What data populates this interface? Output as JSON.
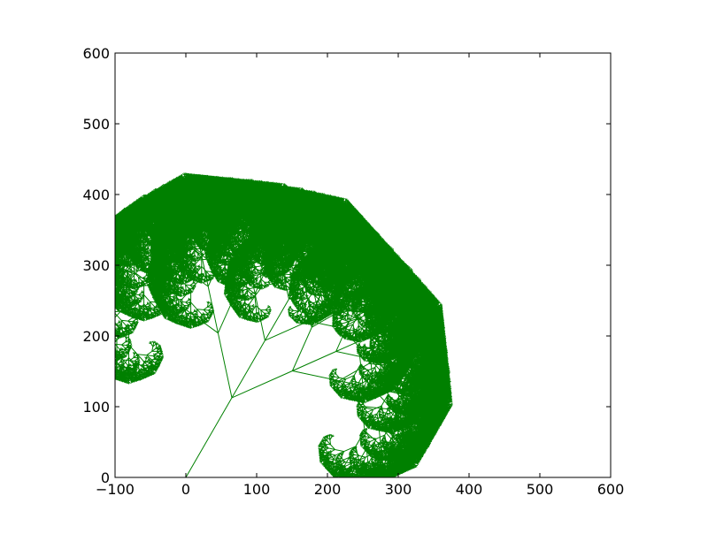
{
  "chart_data": {
    "type": "line",
    "title": "",
    "xlabel": "",
    "ylabel": "",
    "xlim": [
      -100,
      600
    ],
    "ylim": [
      0,
      600
    ],
    "xticks": [
      -100,
      0,
      100,
      200,
      300,
      400,
      500,
      600
    ],
    "yticks": [
      0,
      100,
      200,
      300,
      400,
      500,
      600
    ],
    "xtick_labels": [
      "−100",
      "0",
      "100",
      "200",
      "300",
      "400",
      "500",
      "600"
    ],
    "ytick_labels": [
      "0",
      "100",
      "200",
      "300",
      "400",
      "500",
      "600"
    ],
    "grid": false,
    "legend": "none",
    "colors": {
      "series": "#008000",
      "axes": "#000000",
      "background": "#ffffff"
    },
    "series": [
      {
        "kind": "fractal-tree",
        "root": [
          0,
          0
        ],
        "trunk_length": 130,
        "trunk_angle_deg": 60,
        "depth": 11,
        "length_ratio": 0.72,
        "branch_angles_deg": [
          42,
          0,
          -36
        ]
      }
    ]
  }
}
